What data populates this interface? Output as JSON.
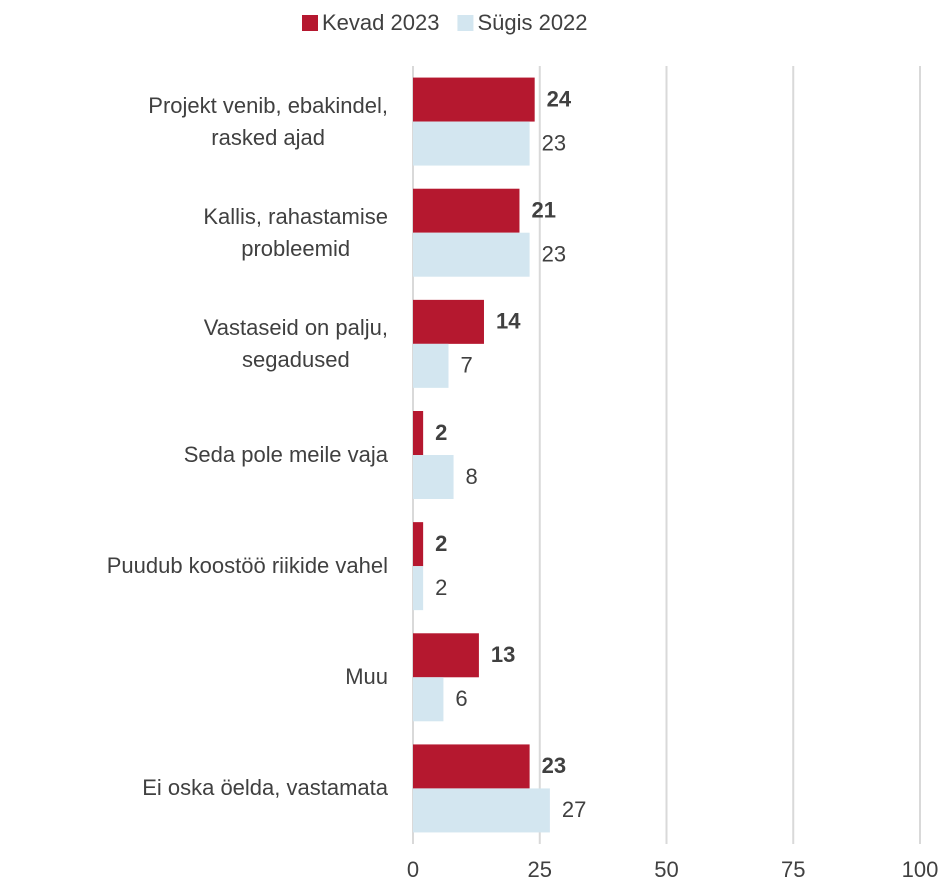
{
  "chart_data": {
    "type": "bar",
    "orientation": "horizontal",
    "categories": [
      "Projekt venib, ebakindel,\nrasked ajad",
      "Kallis, rahastamise\nprobleemid",
      "Vastaseid on palju,\nsegadused",
      "Seda pole meile vaja",
      "Puudub koostöö riikide vahel",
      "Muu",
      "Ei oska öelda, vastamata"
    ],
    "series": [
      {
        "name": "Kevad 2023",
        "color": "#b5182f",
        "values": [
          24,
          21,
          14,
          2,
          2,
          13,
          23
        ]
      },
      {
        "name": "Sügis 2022",
        "color": "#d3e6f0",
        "values": [
          23,
          23,
          7,
          8,
          2,
          6,
          27
        ]
      }
    ],
    "xlim": [
      0,
      100
    ],
    "xticks": [
      0,
      25,
      50,
      75,
      100
    ],
    "grid": true,
    "legend": "top"
  }
}
